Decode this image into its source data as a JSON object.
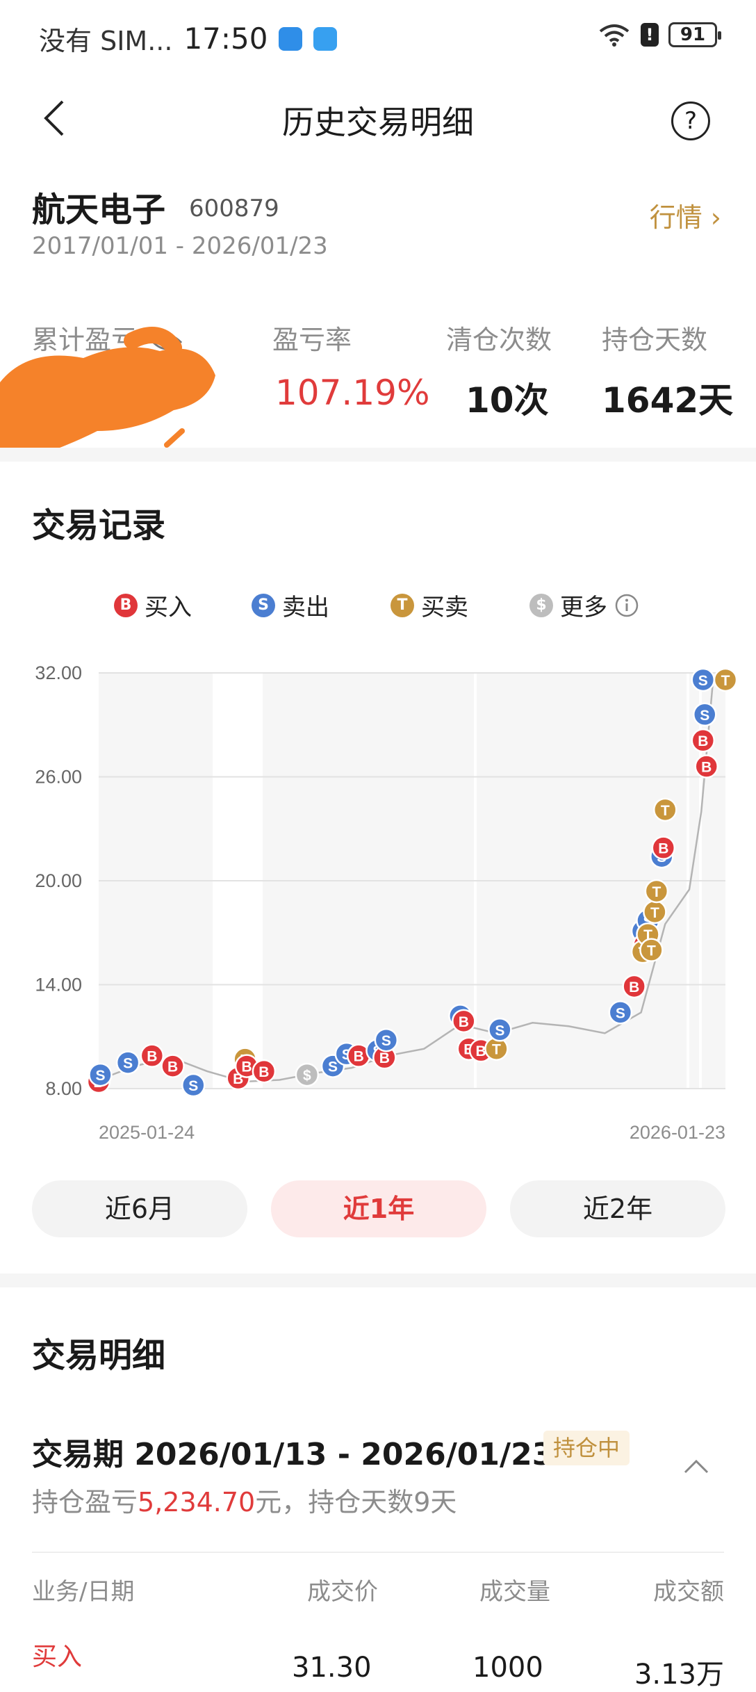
{
  "status_bar": {
    "carrier": "没有 SIM...",
    "time": "17:50",
    "battery": "91"
  },
  "header": {
    "title": "历史交易明细"
  },
  "stock": {
    "name": "航天电子",
    "code": "600879",
    "date_range": "2017/01/01 - 2026/01/23",
    "quote_link": "行情 ›"
  },
  "stats": {
    "cumulative_pl_label": "累计盈亏",
    "pl_rate_label": "盈亏率",
    "pl_rate_value": "107.19%",
    "clearance_label": "清仓次数",
    "clearance_value": "10次",
    "holding_days_label": "持仓天数",
    "holding_days_value": "1642天"
  },
  "records": {
    "title": "交易记录",
    "legend": [
      {
        "letter": "B",
        "label": "买入",
        "color": "#e0363a"
      },
      {
        "letter": "S",
        "label": "卖出",
        "color": "#4b7ed1"
      },
      {
        "letter": "T",
        "label": "买卖",
        "color": "#c9963c"
      },
      {
        "letter": "$",
        "label": "更多",
        "color": "#bdbdbd"
      }
    ]
  },
  "chart_data": {
    "type": "line",
    "yticks": [
      "32.00",
      "26.00",
      "20.00",
      "14.00",
      "8.00"
    ],
    "ylim": [
      8,
      32
    ],
    "x_start_label": "2025-01-24",
    "x_end_label": "2026-01-23",
    "x": [
      "2025-01-24",
      "2025-02-14",
      "2025-03-07",
      "2025-03-28",
      "2025-04-18",
      "2025-05-09",
      "2025-05-30",
      "2025-06-20",
      "2025-07-11",
      "2025-08-01",
      "2025-08-22",
      "2025-09-12",
      "2025-10-03",
      "2025-10-24",
      "2025-11-14",
      "2025-12-05",
      "2025-12-19",
      "2026-01-02",
      "2026-01-09",
      "2026-01-16",
      "2026-01-23"
    ],
    "series": [
      {
        "values": [
          8.5,
          9.3,
          9.8,
          9.0,
          8.4,
          8.5,
          8.9,
          9.2,
          9.9,
          10.3,
          11.7,
          11.2,
          11.8,
          11.6,
          11.2,
          12.4,
          17.5,
          19.5,
          24.0,
          31.8,
          32.0
        ]
      }
    ],
    "markers": [
      {
        "x": "2025-01-24",
        "y": 8.4,
        "type": "B"
      },
      {
        "x": "2025-01-25",
        "y": 8.8,
        "type": "S"
      },
      {
        "x": "2025-02-10",
        "y": 9.5,
        "type": "S"
      },
      {
        "x": "2025-02-24",
        "y": 9.9,
        "type": "B"
      },
      {
        "x": "2025-03-08",
        "y": 9.3,
        "type": "B"
      },
      {
        "x": "2025-03-20",
        "y": 8.2,
        "type": "S"
      },
      {
        "x": "2025-04-15",
        "y": 8.6,
        "type": "B"
      },
      {
        "x": "2025-04-19",
        "y": 9.7,
        "type": "T"
      },
      {
        "x": "2025-04-20",
        "y": 9.3,
        "type": "B"
      },
      {
        "x": "2025-04-30",
        "y": 9.0,
        "type": "B"
      },
      {
        "x": "2025-05-25",
        "y": 8.8,
        "type": "$"
      },
      {
        "x": "2025-06-09",
        "y": 9.3,
        "type": "S"
      },
      {
        "x": "2025-06-17",
        "y": 10.0,
        "type": "S"
      },
      {
        "x": "2025-06-24",
        "y": 9.9,
        "type": "B"
      },
      {
        "x": "2025-07-05",
        "y": 10.2,
        "type": "S"
      },
      {
        "x": "2025-07-09",
        "y": 9.8,
        "type": "B"
      },
      {
        "x": "2025-07-10",
        "y": 10.8,
        "type": "S"
      },
      {
        "x": "2025-08-22",
        "y": 12.2,
        "type": "S"
      },
      {
        "x": "2025-08-24",
        "y": 11.9,
        "type": "B"
      },
      {
        "x": "2025-08-27",
        "y": 10.3,
        "type": "B"
      },
      {
        "x": "2025-09-03",
        "y": 10.2,
        "type": "B"
      },
      {
        "x": "2025-09-12",
        "y": 10.3,
        "type": "T"
      },
      {
        "x": "2025-09-14",
        "y": 11.4,
        "type": "S"
      },
      {
        "x": "2025-11-23",
        "y": 12.4,
        "type": "S"
      },
      {
        "x": "2025-12-01",
        "y": 13.9,
        "type": "B"
      },
      {
        "x": "2025-12-06",
        "y": 17.1,
        "type": "S"
      },
      {
        "x": "2025-12-07",
        "y": 16.3,
        "type": "B"
      },
      {
        "x": "2025-12-06",
        "y": 15.9,
        "type": "T"
      },
      {
        "x": "2025-12-09",
        "y": 17.7,
        "type": "S"
      },
      {
        "x": "2025-12-09",
        "y": 16.9,
        "type": "T"
      },
      {
        "x": "2025-12-11",
        "y": 16.0,
        "type": "T"
      },
      {
        "x": "2025-12-13",
        "y": 18.2,
        "type": "T"
      },
      {
        "x": "2025-12-14",
        "y": 19.4,
        "type": "T"
      },
      {
        "x": "2025-12-17",
        "y": 21.4,
        "type": "S"
      },
      {
        "x": "2025-12-18",
        "y": 21.9,
        "type": "B"
      },
      {
        "x": "2025-12-19",
        "y": 24.1,
        "type": "T"
      },
      {
        "x": "2026-01-10",
        "y": 31.6,
        "type": "S"
      },
      {
        "x": "2026-01-11",
        "y": 29.6,
        "type": "S"
      },
      {
        "x": "2026-01-10",
        "y": 28.1,
        "type": "B"
      },
      {
        "x": "2026-01-12",
        "y": 26.6,
        "type": "B"
      },
      {
        "x": "2026-01-23",
        "y": 31.6,
        "type": "T"
      }
    ]
  },
  "range_tabs": [
    {
      "label": "近6月",
      "active": false
    },
    {
      "label": "近1年",
      "active": true
    },
    {
      "label": "近2年",
      "active": false
    }
  ],
  "detail": {
    "title": "交易明细",
    "period_label": "交易期 2026/01/13 - 2026/01/23",
    "status_badge": "持仓中",
    "holding_pl_prefix": "持仓盈亏",
    "holding_pl_value": "5,234.70",
    "holding_pl_suffix": "元，持仓天数9天",
    "columns": [
      "业务/日期",
      "成交价",
      "成交量",
      "成交额"
    ],
    "first_row": {
      "type": "买入",
      "price": "31.30",
      "volume": "1000",
      "amount": "3.13万"
    }
  }
}
